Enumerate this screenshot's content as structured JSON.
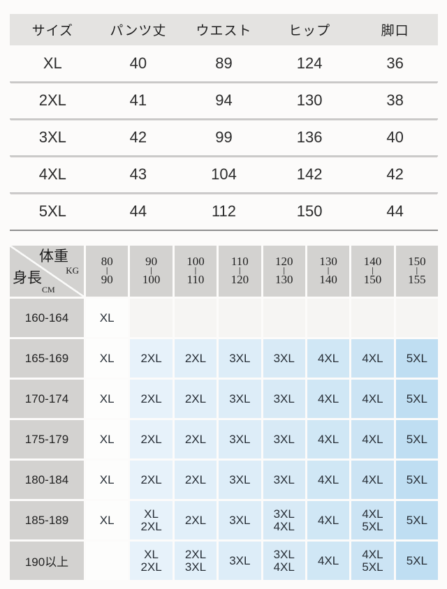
{
  "chart_data": [
    {
      "type": "table",
      "columns": [
        "サイズ",
        "パンツ丈",
        "ウエスト",
        "ヒップ",
        "脚口"
      ],
      "rows": [
        [
          "XL",
          "40",
          "89",
          "124",
          "36"
        ],
        [
          "2XL",
          "41",
          "94",
          "130",
          "38"
        ],
        [
          "3XL",
          "42",
          "99",
          "136",
          "40"
        ],
        [
          "4XL",
          "43",
          "104",
          "142",
          "42"
        ],
        [
          "5XL",
          "44",
          "112",
          "150",
          "44"
        ]
      ]
    },
    {
      "type": "table",
      "corner": {
        "top_label": "体重",
        "top_unit": "KG",
        "side_label": "身長",
        "side_unit": "CM"
      },
      "weight_separator": "|",
      "weight_columns": [
        {
          "from": "80",
          "to": "90"
        },
        {
          "from": "90",
          "to": "100"
        },
        {
          "from": "100",
          "to": "110"
        },
        {
          "from": "110",
          "to": "120"
        },
        {
          "from": "120",
          "to": "130"
        },
        {
          "from": "130",
          "to": "140"
        },
        {
          "from": "140",
          "to": "150"
        },
        {
          "from": "150",
          "to": "155"
        }
      ],
      "rows": [
        {
          "height": "160-164",
          "cells": [
            "XL",
            "",
            "",
            "",
            "",
            "",
            "",
            ""
          ]
        },
        {
          "height": "165-169",
          "cells": [
            "XL",
            "2XL",
            "2XL",
            "3XL",
            "3XL",
            "4XL",
            "4XL",
            "5XL"
          ]
        },
        {
          "height": "170-174",
          "cells": [
            "XL",
            "2XL",
            "2XL",
            "3XL",
            "3XL",
            "4XL",
            "4XL",
            "5XL"
          ]
        },
        {
          "height": "175-179",
          "cells": [
            "XL",
            "2XL",
            "2XL",
            "3XL",
            "3XL",
            "4XL",
            "4XL",
            "5XL"
          ]
        },
        {
          "height": "180-184",
          "cells": [
            "XL",
            "2XL",
            "2XL",
            "3XL",
            "3XL",
            "4XL",
            "4XL",
            "5XL"
          ]
        },
        {
          "height": "185-189",
          "cells": [
            "XL",
            "XL\n2XL",
            "2XL",
            "3XL",
            "3XL\n4XL",
            "4XL",
            "4XL\n5XL",
            "5XL"
          ]
        },
        {
          "height": "190以上",
          "cells": [
            "",
            "XL\n2XL",
            "2XL\n3XL",
            "3XL",
            "3XL\n4XL",
            "4XL",
            "4XL\n5XL",
            "5XL"
          ]
        }
      ]
    }
  ],
  "colors": {
    "page_bg": "#fcfbfa",
    "top_header_gray": "#e4e3e1",
    "matrix_gray": "#d3d2d0",
    "row_divider": "#9c9c9c",
    "blue_light": "#e1eff9",
    "blue_mid": "#d0e7f5",
    "blue_deep": "#bfdef2",
    "text": "#2b2b2b"
  }
}
